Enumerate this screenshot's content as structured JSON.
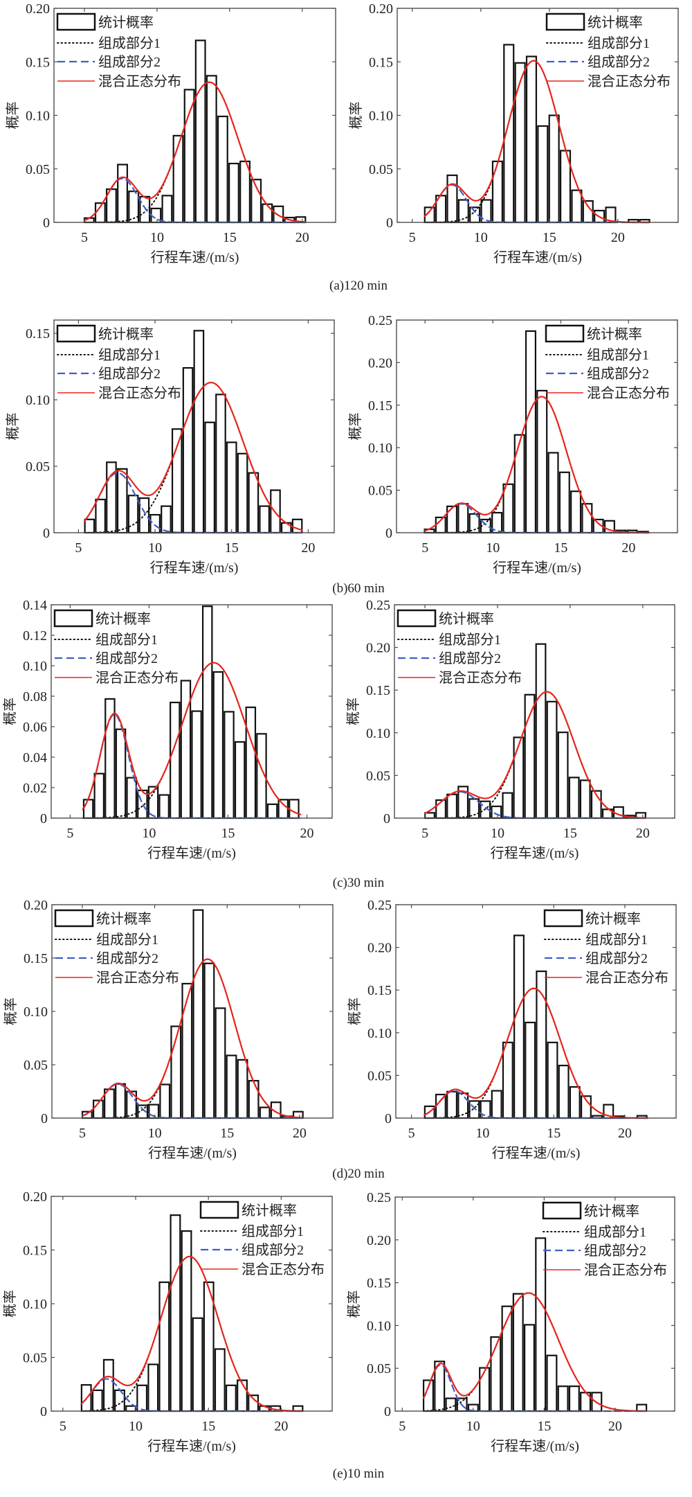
{
  "figure": {
    "captions": [
      "(a)120 min",
      "(b)60 min",
      "(c)30 min",
      "(d)20 min",
      "(e)10 min"
    ]
  },
  "legend": {
    "labels": [
      "统计概率",
      "组成部分1",
      "组成部分2",
      "混合正态分布"
    ]
  },
  "colors": {
    "bar_edge": "#111111",
    "bar_fill": "#ffffff",
    "component_1": "#111111",
    "component_2": "#3d5fc4",
    "mixture": "#e8261c",
    "axes": "#4d4d4d"
  },
  "chart_data": [
    {
      "group": "a",
      "interval": "120 min",
      "column": "left",
      "type": "bar",
      "title": "",
      "xlabel": "行程车速/(m/s)",
      "ylabel": "概率",
      "xlim": [
        2.9,
        22.3
      ],
      "ylim": [
        0,
        0.2
      ],
      "xticks": [
        5,
        10,
        15,
        20
      ],
      "xtick_labels": [
        "5",
        "10",
        "15",
        "20"
      ],
      "yticks": [
        0,
        0.05,
        0.1,
        0.15,
        0.2
      ],
      "ytick_labels": [
        "0",
        "0.05",
        "0.10",
        "0.15",
        "0.20"
      ],
      "grid": false,
      "legend_position": "top-left",
      "histogram": {
        "name": "统计概率",
        "first_bin_center": 5.32,
        "bin_width": 0.767,
        "values": [
          0.004,
          0.018,
          0.031,
          0.054,
          0.029,
          0.024,
          0.013,
          0.025,
          0.081,
          0.124,
          0.17,
          0.137,
          0.099,
          0.055,
          0.057,
          0.04,
          0.017,
          0.015,
          0.0045,
          0.005
        ]
      },
      "components": [
        {
          "name": "组成部分1",
          "style": "dotted",
          "mean": 13.6,
          "sd": 1.95,
          "peak": 0.131
        },
        {
          "name": "组成部分2",
          "style": "dashed",
          "mean": 7.6,
          "sd": 1.05,
          "peak": 0.041
        }
      ],
      "mixture": {
        "name": "混合正态分布",
        "x_range": [
          5.0,
          20.2
        ]
      }
    },
    {
      "group": "a",
      "interval": "120 min",
      "column": "right",
      "type": "bar",
      "title": "",
      "xlabel": "行程车速/(m/s)",
      "ylabel": "概率",
      "xlim": [
        3.9,
        24.4
      ],
      "ylim": [
        0,
        0.2
      ],
      "xticks": [
        5,
        10,
        15,
        20
      ],
      "xtick_labels": [
        "5",
        "10",
        "15",
        "20"
      ],
      "yticks": [
        0,
        0.05,
        0.1,
        0.15,
        0.2
      ],
      "ytick_labels": [
        "0",
        "0.05",
        "0.10",
        "0.15",
        "0.20"
      ],
      "grid": false,
      "legend_position": "top-right",
      "histogram": {
        "name": "统计概率",
        "first_bin_center": 6.26,
        "bin_width": 0.826,
        "values": [
          0.014,
          0.025,
          0.044,
          0.021,
          0.014,
          0.021,
          0.057,
          0.166,
          0.149,
          0.155,
          0.09,
          0.1,
          0.067,
          0.03,
          0.02,
          0.011,
          0.014,
          0,
          0.0025,
          0.0025
        ]
      },
      "components": [
        {
          "name": "组成部分1",
          "style": "dotted",
          "mean": 13.85,
          "sd": 1.85,
          "peak": 0.151
        },
        {
          "name": "组成部分2",
          "style": "dashed",
          "mean": 7.9,
          "sd": 1.05,
          "peak": 0.035
        }
      ],
      "mixture": {
        "name": "混合正态分布",
        "x_range": [
          5.9,
          22.3
        ]
      }
    },
    {
      "group": "b",
      "interval": "60 min",
      "column": "left",
      "type": "bar",
      "title": "",
      "xlabel": "行程车速/(m/s)",
      "ylabel": "概率",
      "xlim": [
        3.4,
        21.7
      ],
      "ylim": [
        0,
        0.16
      ],
      "xticks": [
        5,
        10,
        15,
        20
      ],
      "xtick_labels": [
        "5",
        "10",
        "15",
        "20"
      ],
      "yticks": [
        0,
        0.05,
        0.1,
        0.15
      ],
      "ytick_labels": [
        "0",
        "0.05",
        "0.10",
        "0.15"
      ],
      "grid": false,
      "legend_position": "top-left",
      "histogram": {
        "name": "统计概率",
        "first_bin_center": 5.72,
        "bin_width": 0.714,
        "values": [
          0.01,
          0.025,
          0.053,
          0.048,
          0.028,
          0.026,
          0.0135,
          0.02,
          0.078,
          0.124,
          0.152,
          0.083,
          0.104,
          0.068,
          0.0595,
          0.045,
          0.02,
          0.032,
          0.0074,
          0.01
        ]
      },
      "components": [
        {
          "name": "组成部分1",
          "style": "dotted",
          "mean": 13.65,
          "sd": 2.1,
          "peak": 0.113
        },
        {
          "name": "组成部分2",
          "style": "dashed",
          "mean": 7.55,
          "sd": 1.2,
          "peak": 0.045
        }
      ],
      "mixture": {
        "name": "混合正态分布",
        "x_range": [
          5.4,
          19.6
        ]
      }
    },
    {
      "group": "b",
      "interval": "60 min",
      "column": "right",
      "type": "bar",
      "title": "",
      "xlabel": "行程车速/(m/s)",
      "ylabel": "概率",
      "xlim": [
        2.9,
        23.6
      ],
      "ylim": [
        0,
        0.25
      ],
      "xticks": [
        5,
        10,
        15,
        20
      ],
      "xtick_labels": [
        "5",
        "10",
        "15",
        "20"
      ],
      "yticks": [
        0,
        0.05,
        0.1,
        0.15,
        0.2,
        0.25
      ],
      "ytick_labels": [
        "0",
        "0.05",
        "0.10",
        "0.15",
        "0.20",
        "0.25"
      ],
      "grid": false,
      "legend_position": "top-right",
      "histogram": {
        "name": "统计概率",
        "first_bin_center": 5.32,
        "bin_width": 0.83,
        "values": [
          0.004,
          0.018,
          0.031,
          0.034,
          0.022,
          0.0155,
          0.0235,
          0.057,
          0.115,
          0.237,
          0.167,
          0.094,
          0.071,
          0.0487,
          0.034,
          0.0155,
          0.014,
          0.0027,
          0.0027,
          0.0013
        ]
      },
      "components": [
        {
          "name": "组成部分1",
          "style": "dotted",
          "mean": 13.6,
          "sd": 1.8,
          "peak": 0.16
        },
        {
          "name": "组成部分2",
          "style": "dashed",
          "mean": 7.65,
          "sd": 1.15,
          "peak": 0.034
        }
      ],
      "mixture": {
        "name": "混合正态分布",
        "x_range": [
          5.0,
          21.5
        ]
      }
    },
    {
      "group": "c",
      "interval": "30 min",
      "column": "left",
      "type": "bar",
      "title": "",
      "xlabel": "行程车速/(m/s)",
      "ylabel": "概率",
      "xlim": [
        3.8,
        21.6
      ],
      "ylim": [
        0,
        0.14
      ],
      "xticks": [
        5,
        10,
        15,
        20
      ],
      "xtick_labels": [
        "5",
        "10",
        "15",
        "20"
      ],
      "yticks": [
        0,
        0.02,
        0.04,
        0.06,
        0.08,
        0.1,
        0.12,
        0.14
      ],
      "ytick_labels": [
        "0",
        "0.02",
        "0.04",
        "0.06",
        "0.08",
        "0.10",
        "0.12",
        "0.14"
      ],
      "grid": false,
      "legend_position": "top-left",
      "histogram": {
        "name": "统计概率",
        "first_bin_center": 6.15,
        "bin_width": 0.686,
        "values": [
          0.0121,
          0.0292,
          0.0782,
          0.0583,
          0.0265,
          0.0182,
          0.0206,
          0.0152,
          0.0759,
          0.0902,
          0.0702,
          0.139,
          0.0959,
          0.0698,
          0.05,
          0.0727,
          0.0553,
          0.0091,
          0.0121,
          0.0121
        ]
      },
      "components": [
        {
          "name": "组成部分1",
          "style": "dotted",
          "mean": 14.1,
          "sd": 2.0,
          "peak": 0.102
        },
        {
          "name": "组成部分2",
          "style": "dashed",
          "mean": 7.8,
          "sd": 0.9,
          "peak": 0.068
        }
      ],
      "mixture": {
        "name": "混合正态分布",
        "x_range": [
          5.8,
          19.6
        ]
      }
    },
    {
      "group": "c",
      "interval": "30 min",
      "column": "right",
      "type": "bar",
      "title": "",
      "xlabel": "行程车速/(m/s)",
      "ylabel": "概率",
      "xlim": [
        2.9,
        22.2
      ],
      "ylim": [
        0,
        0.25
      ],
      "xticks": [
        5,
        10,
        15,
        20
      ],
      "xtick_labels": [
        "5",
        "10",
        "15",
        "20"
      ],
      "yticks": [
        0,
        0.05,
        0.1,
        0.15,
        0.2,
        0.25
      ],
      "ytick_labels": [
        "0",
        "0.05",
        "0.10",
        "0.15",
        "0.20",
        "0.25"
      ],
      "grid": false,
      "legend_position": "top-left",
      "histogram": {
        "name": "统计概率",
        "first_bin_center": 5.33,
        "bin_width": 0.765,
        "values": [
          0.0062,
          0.0211,
          0.0278,
          0.037,
          0.0224,
          0.0197,
          0.0138,
          0.0295,
          0.0946,
          0.1446,
          0.204,
          0.1365,
          0.1005,
          0.0476,
          0.0443,
          0.0319,
          0.0103,
          0.013,
          0.003,
          0.0062
        ]
      },
      "components": [
        {
          "name": "组成部分1",
          "style": "dotted",
          "mean": 13.4,
          "sd": 1.85,
          "peak": 0.148
        },
        {
          "name": "组成部分2",
          "style": "dashed",
          "mean": 7.4,
          "sd": 1.3,
          "peak": 0.031
        }
      ],
      "mixture": {
        "name": "混合正态分布",
        "x_range": [
          5.0,
          20.2
        ]
      }
    },
    {
      "group": "d",
      "interval": "20 min",
      "column": "left",
      "type": "bar",
      "title": "",
      "xlabel": "行程车速/(m/s)",
      "ylabel": "概率",
      "xlim": [
        2.9,
        22.3
      ],
      "ylim": [
        0,
        0.2
      ],
      "xticks": [
        5,
        10,
        15,
        20
      ],
      "xtick_labels": [
        "5",
        "10",
        "15",
        "20"
      ],
      "yticks": [
        0,
        0.05,
        0.1,
        0.15,
        0.2
      ],
      "ytick_labels": [
        "0",
        "0.05",
        "0.10",
        "0.15",
        "0.20"
      ],
      "grid": false,
      "legend_position": "top-left",
      "histogram": {
        "name": "统计概率",
        "first_bin_center": 5.33,
        "bin_width": 0.767,
        "values": [
          0.006,
          0.0165,
          0.027,
          0.032,
          0.025,
          0.012,
          0.0126,
          0.0315,
          0.086,
          0.126,
          0.195,
          0.145,
          0.103,
          0.0587,
          0.0546,
          0.035,
          0.01,
          0.0148,
          0.0017,
          0.006
        ]
      },
      "components": [
        {
          "name": "组成部分1",
          "style": "dotted",
          "mean": 13.65,
          "sd": 1.85,
          "peak": 0.149
        },
        {
          "name": "组成部分2",
          "style": "dashed",
          "mean": 7.45,
          "sd": 1.05,
          "peak": 0.032
        }
      ],
      "mixture": {
        "name": "混合正态分布",
        "x_range": [
          5.0,
          20.2
        ]
      }
    },
    {
      "group": "d",
      "interval": "20 min",
      "column": "right",
      "type": "bar",
      "title": "",
      "xlabel": "行程车速/(m/s)",
      "ylabel": "概率",
      "xlim": [
        3.9,
        23.6
      ],
      "ylim": [
        0,
        0.25
      ],
      "xticks": [
        5,
        10,
        15,
        20
      ],
      "xtick_labels": [
        "5",
        "10",
        "15",
        "20"
      ],
      "yticks": [
        0,
        0.05,
        0.1,
        0.15,
        0.2,
        0.25
      ],
      "ytick_labels": [
        "0",
        "0.05",
        "0.10",
        "0.15",
        "0.20",
        "0.25"
      ],
      "grid": false,
      "legend_position": "top-right",
      "histogram": {
        "name": "统计概率",
        "first_bin_center": 6.27,
        "bin_width": 0.786,
        "values": [
          0.0138,
          0.0276,
          0.031,
          0.029,
          0.02,
          0.02,
          0.032,
          0.0886,
          0.214,
          0.112,
          0.172,
          0.0886,
          0.0616,
          0.0365,
          0.0257,
          0.0027,
          0.0157,
          0.0022,
          0,
          0.0027
        ]
      },
      "components": [
        {
          "name": "组成部分1",
          "style": "dotted",
          "mean": 13.6,
          "sd": 1.85,
          "peak": 0.152
        },
        {
          "name": "组成部分2",
          "style": "dashed",
          "mean": 8.0,
          "sd": 1.0,
          "peak": 0.032
        }
      ],
      "mixture": {
        "name": "混合正态分布",
        "x_range": [
          5.9,
          21.6
        ]
      }
    },
    {
      "group": "e",
      "interval": "10 min",
      "column": "left",
      "type": "bar",
      "title": "",
      "xlabel": "行程车速/(m/s)",
      "ylabel": "概率",
      "xlim": [
        4.2,
        23.5
      ],
      "ylim": [
        0,
        0.2
      ],
      "xticks": [
        5,
        10,
        15,
        20
      ],
      "xtick_labels": [
        "5",
        "10",
        "15",
        "20"
      ],
      "yticks": [
        0,
        0.05,
        0.1,
        0.15,
        0.2
      ],
      "ytick_labels": [
        "0",
        "0.05",
        "0.10",
        "0.15",
        "0.20"
      ],
      "grid": false,
      "legend_position": "top-right",
      "histogram": {
        "name": "统计概率",
        "first_bin_center": 6.61,
        "bin_width": 0.765,
        "values": [
          0.0244,
          0.0194,
          0.0478,
          0.0194,
          0.0047,
          0.024,
          0.0435,
          0.12,
          0.1825,
          0.1677,
          0.0866,
          0.12,
          0.0578,
          0.024,
          0.0287,
          0.0147,
          0.0047,
          0.0047,
          0,
          0.0047
        ]
      },
      "components": [
        {
          "name": "组成部分1",
          "style": "dotted",
          "mean": 13.7,
          "sd": 1.95,
          "peak": 0.144
        },
        {
          "name": "组成部分2",
          "style": "dashed",
          "mean": 8.0,
          "sd": 1.0,
          "peak": 0.03
        }
      ],
      "mixture": {
        "name": "混合正态分布",
        "x_range": [
          6.3,
          21.5
        ]
      }
    },
    {
      "group": "e",
      "interval": "10 min",
      "column": "right",
      "type": "bar",
      "title": "",
      "xlabel": "行程车速/(m/s)",
      "ylabel": "概率",
      "xlim": [
        4.5,
        24.2
      ],
      "ylim": [
        0,
        0.25
      ],
      "xticks": [
        5,
        10,
        15,
        20
      ],
      "xtick_labels": [
        "5",
        "10",
        "15",
        "20"
      ],
      "yticks": [
        0,
        0.05,
        0.1,
        0.15,
        0.2,
        0.25
      ],
      "ytick_labels": [
        "0",
        "0.05",
        "0.10",
        "0.15",
        "0.20",
        "0.25"
      ],
      "grid": false,
      "legend_position": "top-right",
      "histogram": {
        "name": "统计概率",
        "first_bin_center": 6.84,
        "bin_width": 0.791,
        "values": [
          0.036,
          0.058,
          0.0149,
          0.0149,
          0.0076,
          0.0505,
          0.0865,
          0.1224,
          0.137,
          0.1008,
          0.202,
          0.065,
          0.029,
          0.029,
          0.0216,
          0.0216,
          0,
          0,
          0,
          0.0076
        ]
      },
      "components": [
        {
          "name": "组成部分1",
          "style": "dotted",
          "mean": 13.9,
          "sd": 2.1,
          "peak": 0.138
        },
        {
          "name": "组成部分2",
          "style": "dashed",
          "mean": 7.7,
          "sd": 0.75,
          "peak": 0.054
        }
      ],
      "mixture": {
        "name": "混合正态分布",
        "x_range": [
          6.5,
          22.2
        ]
      }
    }
  ]
}
